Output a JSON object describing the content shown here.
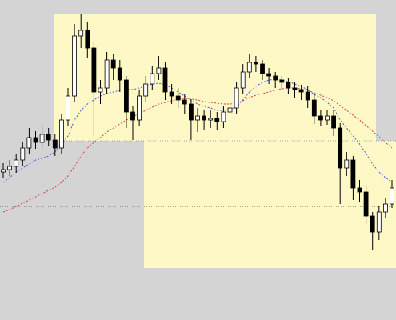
{
  "chart_data": {
    "type": "candlestick",
    "ylim": [
      0,
      400
    ],
    "up_color": "#ffffff",
    "down_color": "#000000",
    "outline_color": "#000000",
    "open": [
      185,
      188,
      192,
      200,
      215,
      228,
      222,
      232,
      225,
      215,
      250,
      280,
      355,
      362,
      340,
      285,
      290,
      325,
      315,
      300,
      260,
      250,
      280,
      295,
      308,
      315,
      285,
      280,
      275,
      270,
      250,
      255,
      250,
      252,
      248,
      260,
      265,
      290,
      310,
      322,
      320,
      308,
      305,
      300,
      297,
      290,
      288,
      285,
      275,
      255,
      250,
      255,
      240,
      190,
      200,
      165,
      160,
      130,
      110,
      135,
      145
    ],
    "high": [
      196,
      200,
      208,
      223,
      240,
      236,
      244,
      240,
      233,
      258,
      290,
      370,
      382,
      372,
      348,
      300,
      335,
      332,
      325,
      305,
      268,
      288,
      305,
      318,
      330,
      322,
      295,
      290,
      282,
      276,
      265,
      262,
      262,
      260,
      268,
      275,
      298,
      320,
      332,
      330,
      325,
      315,
      310,
      305,
      302,
      298,
      294,
      292,
      282,
      262,
      262,
      262,
      246,
      210,
      205,
      175,
      168,
      135,
      142,
      152,
      175
    ],
    "low": [
      177,
      180,
      184,
      192,
      207,
      214,
      214,
      217,
      205,
      207,
      242,
      272,
      340,
      328,
      230,
      270,
      282,
      300,
      285,
      240,
      225,
      242,
      272,
      288,
      300,
      275,
      270,
      265,
      258,
      225,
      235,
      238,
      240,
      238,
      240,
      252,
      258,
      282,
      302,
      310,
      300,
      295,
      290,
      288,
      282,
      278,
      275,
      265,
      245,
      242,
      244,
      230,
      145,
      180,
      150,
      148,
      120,
      88,
      100,
      128,
      140
    ],
    "close": [
      188,
      192,
      200,
      215,
      228,
      222,
      232,
      225,
      215,
      250,
      280,
      355,
      362,
      340,
      285,
      290,
      325,
      315,
      300,
      260,
      250,
      280,
      295,
      308,
      315,
      285,
      280,
      275,
      270,
      250,
      255,
      250,
      252,
      248,
      260,
      265,
      290,
      310,
      322,
      320,
      308,
      305,
      300,
      297,
      290,
      288,
      285,
      275,
      255,
      250,
      255,
      240,
      190,
      200,
      165,
      160,
      130,
      110,
      135,
      145,
      165
    ],
    "series": [
      {
        "color": "#4a5bd6",
        "values": [
          172,
          178,
          185,
          190,
          195,
          200,
          202,
          205,
          210,
          220,
          230,
          250,
          262,
          270,
          275,
          280,
          283,
          285,
          287,
          288,
          288,
          290,
          292,
          295,
          296,
          294,
          290,
          285,
          280,
          275,
          270,
          267,
          265,
          262,
          262,
          263,
          267,
          275,
          285,
          292,
          297,
          300,
          301,
          300,
          298,
          295,
          292,
          288,
          282,
          278,
          272,
          265,
          250,
          240,
          230,
          220,
          208,
          195,
          185,
          178,
          172
        ]
      },
      {
        "color": "#d84040",
        "values": [
          135,
          138,
          142,
          146,
          150,
          154,
          158,
          162,
          166,
          172,
          180,
          192,
          205,
          215,
          222,
          228,
          235,
          240,
          245,
          250,
          254,
          258,
          262,
          266,
          270,
          272,
          274,
          276,
          277,
          276,
          275,
          273,
          272,
          271,
          270,
          270,
          271,
          274,
          278,
          281,
          283,
          285,
          287,
          289,
          290,
          290,
          289,
          287,
          284,
          281,
          278,
          274,
          268,
          262,
          256,
          250,
          243,
          236,
          229,
          222,
          215
        ]
      }
    ],
    "levels": [
      {
        "color": "#a0a0a0",
        "values": [
          224
        ]
      },
      {
        "color": "#555555",
        "values": [
          142
        ]
      }
    ]
  }
}
